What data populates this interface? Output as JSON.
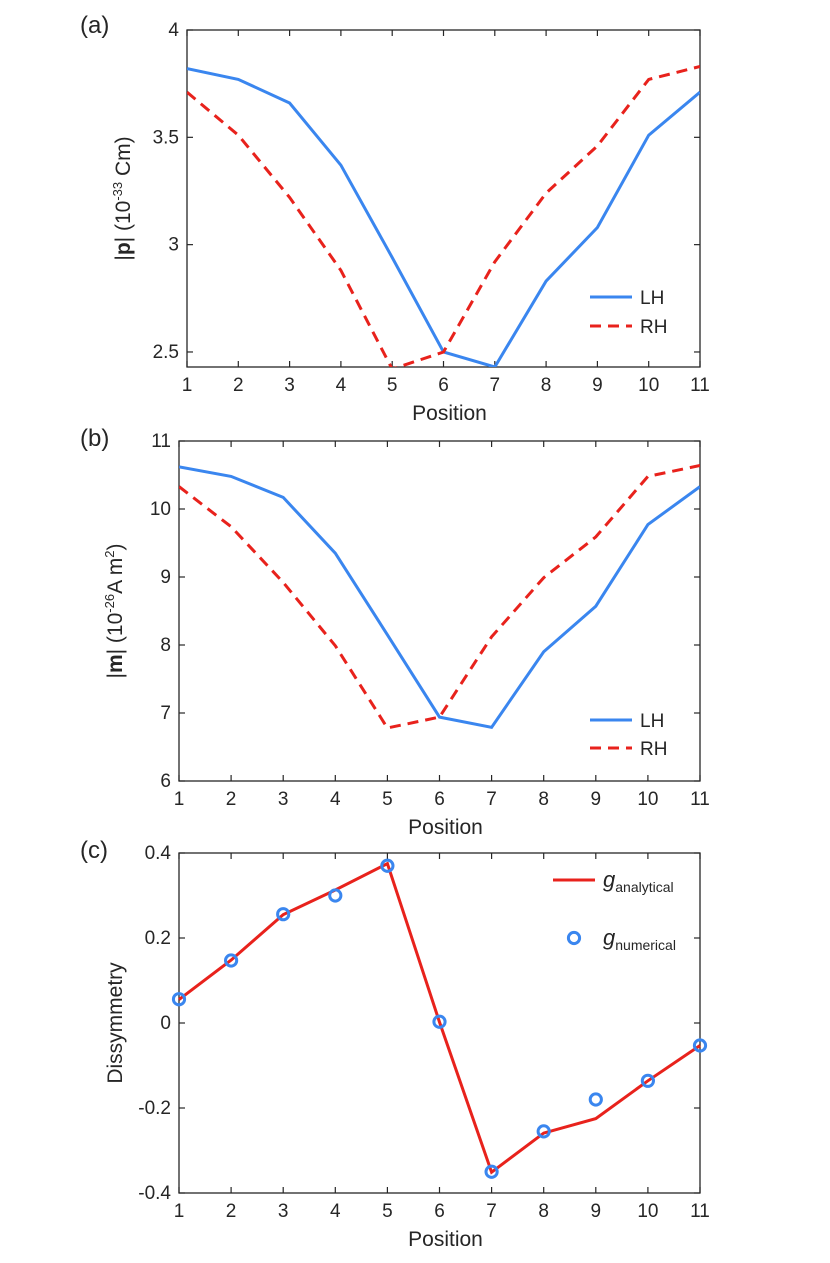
{
  "colors": {
    "blue": "#3a86ef",
    "red": "#e8221c",
    "axis": "#262626"
  },
  "chart_data": [
    {
      "id": "a",
      "type": "line",
      "panel_label": "(a)",
      "xlabel": "Position",
      "ylabel_parts": [
        "|",
        "p",
        "| (10",
        "-33",
        " Cm)"
      ],
      "xlim": [
        1,
        11
      ],
      "ylim": [
        2.43,
        4
      ],
      "xticks": [
        1,
        2,
        3,
        4,
        5,
        6,
        7,
        8,
        9,
        10,
        11
      ],
      "yticks": [
        2.5,
        3,
        3.5,
        4
      ],
      "ytick_labels": [
        "2.5",
        "3",
        "3.5",
        "4"
      ],
      "legend_position": "bottom-right",
      "x": [
        1,
        2,
        3,
        4,
        5,
        6,
        7,
        8,
        9,
        10,
        11
      ],
      "series": [
        {
          "name": "LH",
          "style": "solid",
          "color": "#3a86ef",
          "values": [
            3.82,
            3.77,
            3.66,
            3.37,
            2.94,
            2.5,
            2.43,
            2.83,
            3.08,
            3.51,
            3.71
          ]
        },
        {
          "name": "RH",
          "style": "dashed",
          "color": "#e8221c",
          "values": [
            3.71,
            3.51,
            3.22,
            2.88,
            2.42,
            2.5,
            2.92,
            3.24,
            3.46,
            3.77,
            3.83
          ]
        }
      ]
    },
    {
      "id": "b",
      "type": "line",
      "panel_label": "(b)",
      "xlabel": "Position",
      "ylabel_parts": [
        "|",
        "m",
        "| (10",
        "-26",
        "A m",
        "2",
        ")"
      ],
      "xlim": [
        1,
        11
      ],
      "ylim": [
        6,
        11
      ],
      "xticks": [
        1,
        2,
        3,
        4,
        5,
        6,
        7,
        8,
        9,
        10,
        11
      ],
      "yticks": [
        6,
        7,
        8,
        9,
        10,
        11
      ],
      "ytick_labels": [
        "6",
        "7",
        "8",
        "9",
        "10",
        "11"
      ],
      "legend_position": "bottom-right",
      "x": [
        1,
        2,
        3,
        4,
        5,
        6,
        7,
        8,
        9,
        10,
        11
      ],
      "series": [
        {
          "name": "LH",
          "style": "solid",
          "color": "#3a86ef",
          "values": [
            10.62,
            10.48,
            10.17,
            9.35,
            8.15,
            6.94,
            6.79,
            7.9,
            8.57,
            9.77,
            10.33
          ]
        },
        {
          "name": "RH",
          "style": "dashed",
          "color": "#e8221c",
          "values": [
            10.33,
            9.74,
            8.92,
            7.99,
            6.78,
            6.94,
            8.12,
            8.99,
            9.59,
            10.48,
            10.64
          ]
        }
      ]
    },
    {
      "id": "c",
      "type": "line",
      "panel_label": "(c)",
      "xlabel": "Position",
      "ylabel_parts": [
        "Dissymmetry"
      ],
      "xlim": [
        1,
        11
      ],
      "ylim": [
        -0.4,
        0.4
      ],
      "xticks": [
        1,
        2,
        3,
        4,
        5,
        6,
        7,
        8,
        9,
        10,
        11
      ],
      "yticks": [
        -0.4,
        -0.2,
        0,
        0.2,
        0.4
      ],
      "ytick_labels": [
        "-0.4",
        "-0.2",
        "0",
        "0.2",
        "0.4"
      ],
      "legend_position": "top-right",
      "x": [
        1,
        2,
        3,
        4,
        5,
        6,
        7,
        8,
        9,
        10,
        11
      ],
      "series": [
        {
          "name": "g",
          "subscript": "analytical",
          "style": "solid",
          "color": "#e8221c",
          "values": [
            0.055,
            0.148,
            0.255,
            0.313,
            0.375,
            0.002,
            -0.351,
            -0.259,
            -0.225,
            -0.136,
            -0.053
          ]
        },
        {
          "name": "g",
          "subscript": "numerical",
          "style": "markers",
          "color": "#3a86ef",
          "values": [
            0.056,
            0.147,
            0.256,
            0.3,
            0.37,
            0.003,
            -0.35,
            -0.255,
            -0.18,
            -0.136,
            -0.053
          ]
        }
      ]
    }
  ]
}
